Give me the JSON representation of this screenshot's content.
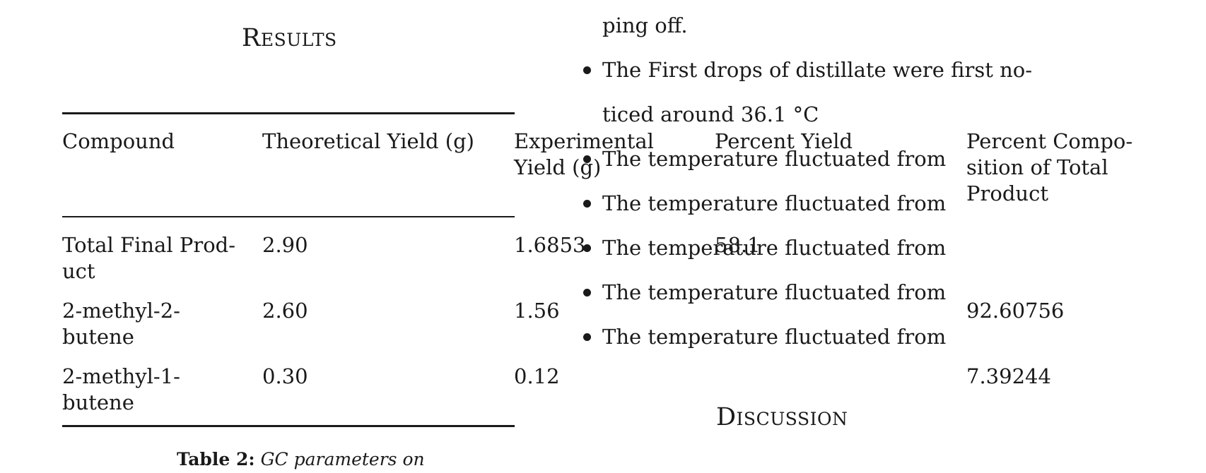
{
  "results": {
    "title": "Results"
  },
  "table": {
    "headers": {
      "compound": "Compound",
      "theoretical": "Theoretical Yield (g)",
      "experimental_1": "Experimental",
      "experimental_2": "Yield (g)",
      "percent_yield": "Percent Yield",
      "composition_1": "Percent Compo-",
      "composition_2": "sition of Total",
      "composition_3": "Product"
    },
    "rows": [
      {
        "compound_1": "Total Final Prod-",
        "compound_2": "uct",
        "theoretical": "2.90",
        "experimental": "1.6853",
        "percent_yield": "58.1",
        "composition": ""
      },
      {
        "compound_1": "2-methyl-2-",
        "compound_2": "butene",
        "theoretical": "2.60",
        "experimental": "1.56",
        "percent_yield": "",
        "composition": "92.60756"
      },
      {
        "compound_1": "2-methyl-1-",
        "compound_2": "butene",
        "theoretical": "0.30",
        "experimental": "0.12",
        "percent_yield": "",
        "composition": "7.39244"
      }
    ],
    "caption": {
      "label": "Table 2:",
      "text": "GC parameters on"
    }
  },
  "notes": {
    "continuation": "ping off.",
    "bullets": [
      {
        "line1": "The First drops of distillate were first no-",
        "line2": "ticed around 36.1 °C"
      },
      {
        "line1": "The temperature fluctuated from"
      },
      {
        "line1": "The temperature fluctuated from"
      },
      {
        "line1": "The temperature fluctuated from"
      },
      {
        "line1": "The temperature fluctuated from"
      },
      {
        "line1": "The temperature fluctuated from"
      }
    ]
  },
  "discussion": {
    "title": "Discussion"
  }
}
